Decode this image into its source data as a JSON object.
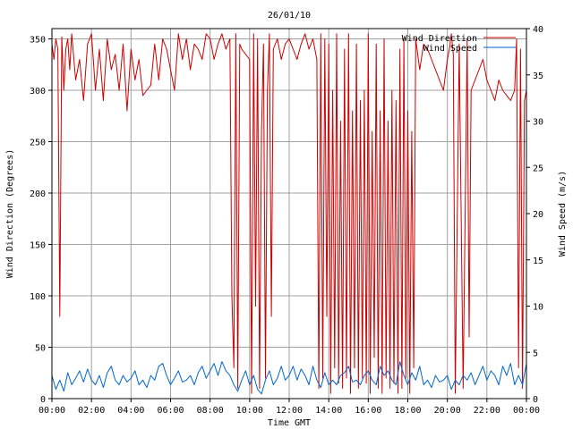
{
  "chart_data": {
    "type": "line",
    "title": "26/01/10",
    "xlabel": "Time GMT",
    "ylabel_left": "Wind Direction (Degrees)",
    "ylabel_right": "Wind Speed (m/s)",
    "x_ticks": [
      "00:00",
      "02:00",
      "04:00",
      "06:00",
      "08:00",
      "10:00",
      "12:00",
      "14:00",
      "16:00",
      "18:00",
      "20:00",
      "22:00",
      "00:00"
    ],
    "xlim_hours": [
      0,
      24
    ],
    "y_left_ticks": [
      0,
      50,
      100,
      150,
      200,
      250,
      300,
      350
    ],
    "ylim_left": [
      0,
      360
    ],
    "y_right_ticks": [
      0,
      5,
      10,
      15,
      20,
      25,
      30,
      35,
      40
    ],
    "ylim_right": [
      0,
      40
    ],
    "grid": true,
    "legend_position": "top-right",
    "series": [
      {
        "name": "Wind Direction",
        "axis": "left",
        "color": "#cc0000",
        "x": [
          0.0,
          0.1,
          0.2,
          0.3,
          0.4,
          0.5,
          0.6,
          0.7,
          0.8,
          0.9,
          1.0,
          1.2,
          1.4,
          1.6,
          1.8,
          2.0,
          2.2,
          2.4,
          2.6,
          2.8,
          3.0,
          3.2,
          3.4,
          3.6,
          3.8,
          4.0,
          4.2,
          4.4,
          4.6,
          4.8,
          5.0,
          5.2,
          5.4,
          5.6,
          5.8,
          6.0,
          6.2,
          6.4,
          6.6,
          6.8,
          7.0,
          7.2,
          7.4,
          7.6,
          7.8,
          8.0,
          8.2,
          8.4,
          8.6,
          8.8,
          9.0,
          9.1,
          9.2,
          9.3,
          9.4,
          9.5,
          9.6,
          9.8,
          10.0,
          10.1,
          10.2,
          10.3,
          10.4,
          10.5,
          10.6,
          10.7,
          10.8,
          10.9,
          11.0,
          11.1,
          11.2,
          11.4,
          11.6,
          11.8,
          12.0,
          12.2,
          12.4,
          12.6,
          12.8,
          13.0,
          13.2,
          13.4,
          13.5,
          13.6,
          13.7,
          13.8,
          13.9,
          14.0,
          14.1,
          14.2,
          14.3,
          14.4,
          14.5,
          14.6,
          14.7,
          14.8,
          14.9,
          15.0,
          15.1,
          15.2,
          15.3,
          15.4,
          15.5,
          15.6,
          15.7,
          15.8,
          15.9,
          16.0,
          16.1,
          16.2,
          16.3,
          16.4,
          16.5,
          16.6,
          16.7,
          16.8,
          16.9,
          17.0,
          17.1,
          17.2,
          17.3,
          17.4,
          17.5,
          17.6,
          17.7,
          17.8,
          17.9,
          18.0,
          18.1,
          18.2,
          18.3,
          18.4,
          18.6,
          18.8,
          19.0,
          19.2,
          19.4,
          19.6,
          19.8,
          20.0,
          20.1,
          20.2,
          20.3,
          20.4,
          20.6,
          20.8,
          21.0,
          21.1,
          21.2,
          21.4,
          21.6,
          21.8,
          22.0,
          22.2,
          22.4,
          22.6,
          22.8,
          23.0,
          23.2,
          23.4,
          23.5,
          23.6,
          23.7,
          23.8,
          23.9,
          24.0
        ],
        "y": [
          345,
          330,
          350,
          340,
          80,
          352,
          300,
          340,
          350,
          320,
          355,
          310,
          330,
          290,
          345,
          355,
          300,
          340,
          290,
          350,
          320,
          335,
          300,
          345,
          280,
          340,
          310,
          330,
          295,
          300,
          305,
          345,
          310,
          350,
          340,
          320,
          300,
          355,
          330,
          350,
          320,
          345,
          340,
          330,
          355,
          350,
          330,
          345,
          355,
          340,
          350,
          100,
          30,
          355,
          10,
          345,
          340,
          335,
          330,
          5,
          355,
          90,
          350,
          10,
          260,
          345,
          20,
          300,
          355,
          80,
          340,
          350,
          330,
          345,
          350,
          340,
          330,
          345,
          355,
          340,
          350,
          330,
          10,
          355,
          20,
          350,
          80,
          345,
          5,
          300,
          30,
          355,
          15,
          270,
          10,
          340,
          20,
          355,
          5,
          280,
          30,
          345,
          10,
          290,
          20,
          300,
          15,
          355,
          5,
          260,
          40,
          345,
          10,
          280,
          5,
          350,
          20,
          270,
          10,
          300,
          15,
          290,
          5,
          340,
          10,
          350,
          20,
          280,
          5,
          260,
          30,
          350,
          320,
          345,
          340,
          330,
          320,
          310,
          300,
          330,
          340,
          355,
          335,
          5,
          345,
          10,
          350,
          60,
          300,
          310,
          320,
          330,
          310,
          300,
          290,
          310,
          300,
          295,
          290,
          300,
          350,
          30,
          340,
          10,
          290,
          300
        ]
      },
      {
        "name": "Wind Speed",
        "axis": "right",
        "color": "#0066cc",
        "x": [
          0.0,
          0.2,
          0.4,
          0.6,
          0.8,
          1.0,
          1.2,
          1.4,
          1.6,
          1.8,
          2.0,
          2.2,
          2.4,
          2.6,
          2.8,
          3.0,
          3.2,
          3.4,
          3.6,
          3.8,
          4.0,
          4.2,
          4.4,
          4.6,
          4.8,
          5.0,
          5.2,
          5.4,
          5.6,
          5.8,
          6.0,
          6.2,
          6.4,
          6.6,
          6.8,
          7.0,
          7.2,
          7.4,
          7.6,
          7.8,
          8.0,
          8.2,
          8.4,
          8.6,
          8.8,
          9.0,
          9.2,
          9.4,
          9.6,
          9.8,
          10.0,
          10.2,
          10.4,
          10.6,
          10.8,
          11.0,
          11.2,
          11.4,
          11.6,
          11.8,
          12.0,
          12.2,
          12.4,
          12.6,
          12.8,
          13.0,
          13.2,
          13.4,
          13.6,
          13.8,
          14.0,
          14.2,
          14.4,
          14.6,
          14.8,
          15.0,
          15.2,
          15.4,
          15.6,
          15.8,
          16.0,
          16.2,
          16.4,
          16.6,
          16.8,
          17.0,
          17.2,
          17.4,
          17.6,
          17.8,
          18.0,
          18.2,
          18.4,
          18.6,
          18.8,
          19.0,
          19.2,
          19.4,
          19.6,
          19.8,
          20.0,
          20.2,
          20.4,
          20.6,
          20.8,
          21.0,
          21.2,
          21.4,
          21.6,
          21.8,
          22.0,
          22.2,
          22.4,
          22.6,
          22.8,
          23.0,
          23.2,
          23.4,
          23.6,
          23.8,
          24.0
        ],
        "y": [
          2.5,
          1.0,
          2.0,
          0.8,
          2.8,
          1.5,
          2.2,
          3.0,
          1.8,
          3.2,
          2.0,
          1.5,
          2.5,
          1.2,
          2.8,
          3.5,
          2.0,
          1.5,
          2.5,
          1.8,
          2.2,
          3.0,
          1.5,
          2.0,
          1.2,
          2.5,
          2.0,
          3.5,
          3.8,
          2.5,
          1.5,
          2.2,
          3.0,
          1.8,
          2.0,
          2.5,
          1.5,
          2.8,
          3.5,
          2.2,
          3.0,
          3.8,
          2.5,
          4.0,
          3.0,
          2.5,
          1.5,
          0.8,
          2.0,
          3.0,
          1.5,
          2.5,
          1.0,
          0.5,
          2.0,
          3.0,
          1.5,
          2.2,
          3.5,
          2.0,
          2.5,
          3.5,
          2.0,
          3.2,
          2.5,
          1.5,
          3.5,
          2.0,
          1.2,
          2.8,
          1.5,
          2.0,
          1.5,
          2.5,
          2.8,
          3.5,
          1.8,
          2.0,
          1.5,
          2.5,
          3.0,
          2.0,
          1.5,
          3.5,
          2.5,
          3.0,
          2.0,
          1.5,
          4.0,
          2.5,
          1.5,
          2.8,
          2.0,
          3.5,
          1.5,
          2.0,
          1.2,
          2.5,
          1.8,
          2.0,
          2.5,
          1.0,
          2.0,
          1.5,
          2.5,
          2.0,
          2.8,
          1.5,
          2.5,
          3.5,
          2.0,
          3.0,
          2.5,
          1.5,
          3.5,
          2.5,
          3.8,
          1.5,
          2.5,
          1.5,
          3.8
        ]
      }
    ]
  }
}
